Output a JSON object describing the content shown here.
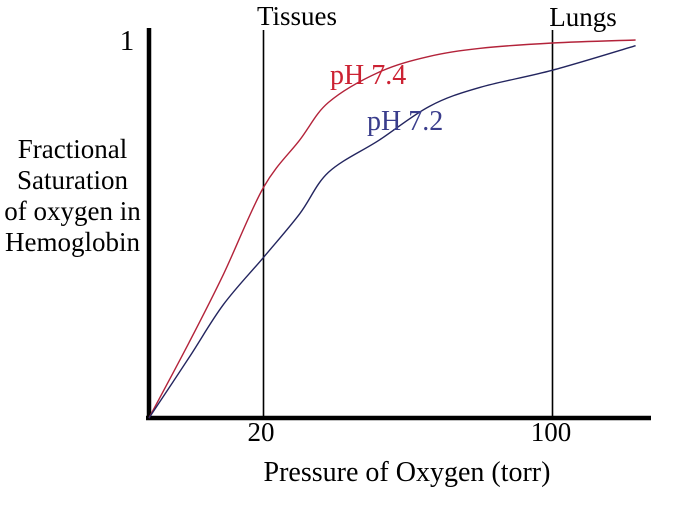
{
  "chart_data": {
    "type": "line",
    "title": "",
    "xlabel": "Pressure of Oxygen (torr)",
    "ylabel": "Fractional Saturation of oxygen in Hemoglobin",
    "ylabel_lines": [
      "Fractional",
      "Saturation",
      "of oxygen in",
      "Hemoglobin"
    ],
    "x_ticks": [
      {
        "value": 20,
        "label": "20"
      },
      {
        "value": 100,
        "label": "100"
      }
    ],
    "y_ticks": [
      {
        "value": 1,
        "label": "1"
      }
    ],
    "x_range_torr": [
      0,
      125
    ],
    "y_range": [
      0,
      1
    ],
    "grid": false,
    "legend_position": "inline-curve-labels",
    "annotations": [
      {
        "text": "Tissues",
        "x_torr": 20,
        "line_color": "#000000"
      },
      {
        "text": "Lungs",
        "x_torr": 100,
        "line_color": "#000000"
      }
    ],
    "axis_color": "#000000",
    "series": [
      {
        "name": "pH 7.4",
        "curve_color": "#b3233a",
        "label_color": "#cc2233",
        "points_torr_saturation": [
          [
            0,
            0
          ],
          [
            7,
            0.2
          ],
          [
            13,
            0.38
          ],
          [
            20,
            0.61
          ],
          [
            30,
            0.735
          ],
          [
            38,
            0.835
          ],
          [
            52,
            0.915
          ],
          [
            66,
            0.957
          ],
          [
            80,
            0.978
          ],
          [
            100,
            0.992
          ],
          [
            123,
            1.0
          ]
        ]
      },
      {
        "name": "pH 7.2",
        "curve_color": "#23255f",
        "label_color": "#3a3d8c",
        "points_torr_saturation": [
          [
            0,
            0
          ],
          [
            7,
            0.16
          ],
          [
            13,
            0.3
          ],
          [
            20,
            0.425
          ],
          [
            30,
            0.54
          ],
          [
            38,
            0.65
          ],
          [
            52,
            0.735
          ],
          [
            66,
            0.825
          ],
          [
            80,
            0.875
          ],
          [
            100,
            0.92
          ],
          [
            123,
            0.985
          ]
        ]
      }
    ]
  }
}
